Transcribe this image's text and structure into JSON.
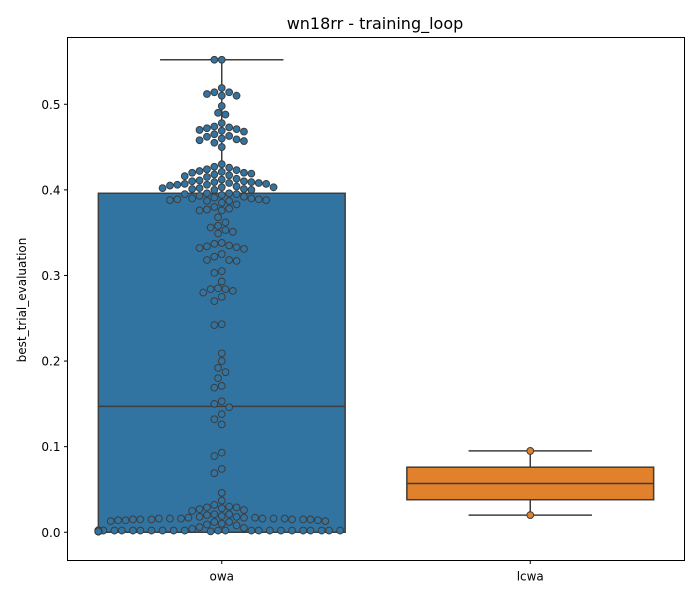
{
  "chart_data": {
    "type": "box+swarm",
    "title": "wn18rr - training_loop",
    "xlabel": "",
    "ylabel": "best_trial_evaluation",
    "ylim": [
      -0.033,
      0.578
    ],
    "yticks": [
      0.0,
      0.1,
      0.2,
      0.3,
      0.4,
      0.5
    ],
    "ytick_labels": [
      "0.0",
      "0.1",
      "0.2",
      "0.3",
      "0.4",
      "0.5"
    ],
    "categories": [
      "owa",
      "lcwa"
    ],
    "grid": false,
    "colors": {
      "owa": "#3274a1",
      "lcwa": "#e1812c",
      "line": "#3d3d3d",
      "point_edge": "#3d3d3d"
    },
    "boxes": [
      {
        "category": "owa",
        "whisker_low": 0.0,
        "q1": 0.0,
        "median": 0.147,
        "q3": 0.396,
        "whisker_high": 0.552
      },
      {
        "category": "lcwa",
        "whisker_low": 0.02,
        "q1": 0.038,
        "median": 0.057,
        "q3": 0.076,
        "whisker_high": 0.095
      }
    ],
    "swarm": {
      "owa": [
        0.552,
        0.552,
        0.519,
        0.514,
        0.514,
        0.512,
        0.51,
        0.51,
        0.498,
        0.49,
        0.488,
        0.478,
        0.474,
        0.473,
        0.472,
        0.471,
        0.47,
        0.469,
        0.468,
        0.465,
        0.463,
        0.462,
        0.46,
        0.459,
        0.458,
        0.457,
        0.455,
        0.45,
        0.43,
        0.427,
        0.426,
        0.424,
        0.423,
        0.422,
        0.421,
        0.42,
        0.42,
        0.419,
        0.418,
        0.417,
        0.416,
        0.415,
        0.413,
        0.412,
        0.411,
        0.41,
        0.41,
        0.409,
        0.409,
        0.408,
        0.408,
        0.407,
        0.407,
        0.406,
        0.406,
        0.405,
        0.404,
        0.403,
        0.403,
        0.402,
        0.402,
        0.401,
        0.401,
        0.4,
        0.4,
        0.396,
        0.396,
        0.395,
        0.395,
        0.394,
        0.393,
        0.392,
        0.391,
        0.39,
        0.39,
        0.389,
        0.389,
        0.388,
        0.388,
        0.387,
        0.387,
        0.385,
        0.383,
        0.38,
        0.378,
        0.377,
        0.376,
        0.376,
        0.368,
        0.362,
        0.358,
        0.356,
        0.353,
        0.351,
        0.349,
        0.338,
        0.337,
        0.335,
        0.334,
        0.333,
        0.332,
        0.331,
        0.325,
        0.322,
        0.318,
        0.318,
        0.317,
        0.305,
        0.303,
        0.293,
        0.285,
        0.284,
        0.284,
        0.282,
        0.28,
        0.275,
        0.27,
        0.243,
        0.242,
        0.209,
        0.2,
        0.192,
        0.187,
        0.18,
        0.171,
        0.169,
        0.153,
        0.15,
        0.146,
        0.138,
        0.132,
        0.126,
        0.093,
        0.089,
        0.074,
        0.069,
        0.046,
        0.037,
        0.032,
        0.03,
        0.029,
        0.029,
        0.028,
        0.027,
        0.026,
        0.025,
        0.021,
        0.021,
        0.02,
        0.019,
        0.018,
        0.018,
        0.017,
        0.017,
        0.017,
        0.016,
        0.016,
        0.016,
        0.016,
        0.016,
        0.016,
        0.015,
        0.015,
        0.015,
        0.015,
        0.015,
        0.015,
        0.014,
        0.014,
        0.014,
        0.013,
        0.013,
        0.012,
        0.012,
        0.01,
        0.009,
        0.008,
        0.006,
        0.005,
        0.004,
        0.002,
        0.002,
        0.002,
        0.002,
        0.002,
        0.002,
        0.002,
        0.002,
        0.002,
        0.002,
        0.002,
        0.002,
        0.002,
        0.002,
        0.002,
        0.002,
        0.002,
        0.002,
        0.002,
        0.002,
        0.002,
        0.002,
        0.002,
        0.002,
        0.002,
        0.002,
        0.002,
        0.002,
        0.002,
        0.002,
        0.001,
        0.001,
        0.001,
        0.001,
        0.001,
        0.001,
        0.001,
        0.001,
        0.001,
        0.001,
        0.001,
        0.001,
        0.001,
        0.001,
        0.001,
        0.001,
        0.001,
        0.001,
        0.001,
        0.001,
        0.001,
        0.001,
        0.001,
        0.001,
        0.001,
        0.001,
        0.001,
        0.001,
        0.001,
        0.001,
        0.001,
        0.001
      ],
      "lcwa": [
        0.095,
        0.02
      ]
    }
  }
}
